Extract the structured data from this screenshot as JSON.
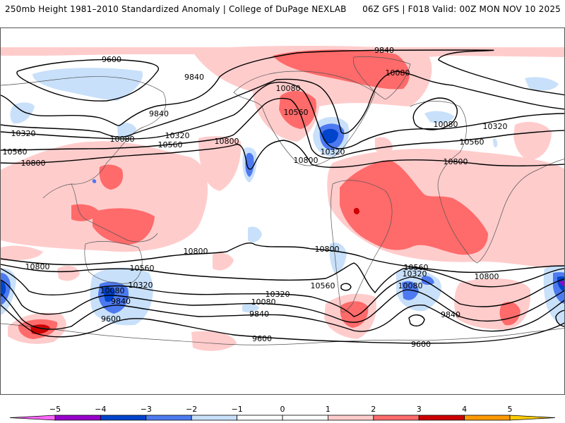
{
  "header": {
    "title_left": "250mb Height 1981–2010 Standardized Anomaly | College of DuPage NEXLAB",
    "title_right": "06Z GFS | F018 Valid: 00Z MON NOV 10 2025"
  },
  "map": {
    "field": "250mb geopotential height (m) contours with standardized anomaly shading",
    "contour_labels": [
      {
        "id": "c1",
        "text": "9600"
      },
      {
        "id": "c2",
        "text": "9840"
      },
      {
        "id": "c3",
        "text": "9840"
      },
      {
        "id": "c4",
        "text": "10320"
      },
      {
        "id": "c5",
        "text": "10080"
      },
      {
        "id": "c6",
        "text": "10320"
      },
      {
        "id": "c7",
        "text": "10560"
      },
      {
        "id": "c8",
        "text": "10560"
      },
      {
        "id": "c9",
        "text": "10800"
      },
      {
        "id": "c10",
        "text": "10080"
      },
      {
        "id": "c11",
        "text": "10560"
      },
      {
        "id": "c12",
        "text": "10800"
      },
      {
        "id": "c13",
        "text": "10320"
      },
      {
        "id": "c14",
        "text": "10800"
      },
      {
        "id": "c15",
        "text": "9840"
      },
      {
        "id": "c16",
        "text": "10080"
      },
      {
        "id": "c17",
        "text": "10080"
      },
      {
        "id": "c18",
        "text": "10320"
      },
      {
        "id": "c19",
        "text": "10560"
      },
      {
        "id": "c20",
        "text": "10800"
      },
      {
        "id": "c21",
        "text": "10800"
      },
      {
        "id": "c22",
        "text": "10800"
      },
      {
        "id": "c23",
        "text": "10800"
      },
      {
        "id": "c24",
        "text": "10560"
      },
      {
        "id": "c25",
        "text": "10320"
      },
      {
        "id": "c26",
        "text": "10080"
      },
      {
        "id": "c27",
        "text": "9840"
      },
      {
        "id": "c28",
        "text": "9600"
      },
      {
        "id": "c29",
        "text": "10560"
      },
      {
        "id": "c30",
        "text": "10320"
      },
      {
        "id": "c31",
        "text": "10080"
      },
      {
        "id": "c32",
        "text": "9840"
      },
      {
        "id": "c33",
        "text": "9600"
      },
      {
        "id": "c34",
        "text": "10560"
      },
      {
        "id": "c35",
        "text": "10320"
      },
      {
        "id": "c36",
        "text": "10080"
      },
      {
        "id": "c37",
        "text": "9840"
      },
      {
        "id": "c38",
        "text": "9600"
      },
      {
        "id": "c39",
        "text": "10800"
      }
    ]
  },
  "colorbar": {
    "ticks": [
      "−5",
      "−4",
      "−3",
      "−2",
      "−1",
      "0",
      "1",
      "2",
      "3",
      "4",
      "5"
    ],
    "bins": [
      {
        "range": "< -5",
        "color": "#ff66ff"
      },
      {
        "range": "-5 to -4",
        "color": "#9900cc"
      },
      {
        "range": "-4 to -3",
        "color": "#0044cc"
      },
      {
        "range": "-3 to -2",
        "color": "#4d7af0"
      },
      {
        "range": "-2 to -1",
        "color": "#c8e0fa"
      },
      {
        "range": "-1 to 0",
        "color": "#ffffff"
      },
      {
        "range": "0 to 1",
        "color": "#ffffff"
      },
      {
        "range": "1 to 2",
        "color": "#ffcccc"
      },
      {
        "range": "2 to 3",
        "color": "#ff6a6a"
      },
      {
        "range": "3 to 4",
        "color": "#cc0000"
      },
      {
        "range": "4 to 5",
        "color": "#ff9900"
      },
      {
        "range": "> 5",
        "color": "#ffcc00"
      }
    ]
  },
  "colors": {
    "neg1": "#c8e0fa",
    "neg2": "#4d7af0",
    "neg3": "#0044cc",
    "neg4": "#9900cc",
    "pos1": "#ffcccc",
    "pos2": "#ff6a6a",
    "pos3": "#cc0000",
    "coast": "#555555",
    "contour": "#000000"
  }
}
